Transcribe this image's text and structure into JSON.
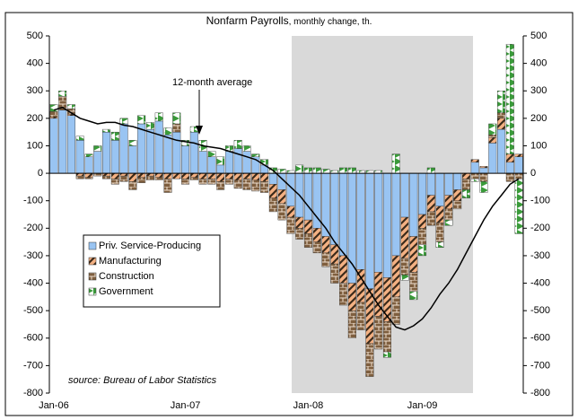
{
  "chart_data": {
    "type": "bar",
    "stacked": true,
    "title": "Nonfarm Payrolls",
    "subtitle": ", monthly change, th.",
    "annotation": "source: Bureau of Labor Statistics",
    "categories": [
      "Jan-06",
      null,
      null,
      null,
      null,
      null,
      null,
      null,
      null,
      null,
      null,
      null,
      null,
      null,
      null,
      "Jan-07",
      null,
      null,
      null,
      null,
      null,
      null,
      null,
      null,
      null,
      null,
      null,
      null,
      null,
      "Jan-08",
      null,
      null,
      null,
      null,
      null,
      null,
      null,
      null,
      null,
      null,
      null,
      null,
      "Jan-09",
      null,
      null,
      null,
      null,
      null,
      null,
      null,
      null,
      null,
      null,
      null
    ],
    "ylim": [
      -800,
      500
    ],
    "yticks": [
      -800,
      -700,
      -600,
      -500,
      -400,
      -300,
      -200,
      -100,
      0,
      100,
      200,
      300,
      400,
      500
    ],
    "y2lim": [
      -800,
      500
    ],
    "y2ticks": [
      -800,
      -700,
      -600,
      -500,
      -400,
      -300,
      -200,
      -100,
      0,
      100,
      200,
      300,
      400,
      500
    ],
    "grid": false,
    "legend": "lower left",
    "series": [
      {
        "name": "Priv. Service-Producing",
        "color": "#99c4f2",
        "values": [
          200,
          230,
          210,
          120,
          60,
          80,
          150,
          120,
          180,
          100,
          180,
          160,
          190,
          140,
          150,
          100,
          150,
          80,
          60,
          30,
          80,
          90,
          80,
          60,
          30,
          -40,
          -60,
          -120,
          -160,
          -170,
          -200,
          -230,
          -260,
          -300,
          -400,
          -350,
          -420,
          -360,
          -380,
          -300,
          -160,
          -230,
          -150,
          -80,
          -120,
          -80,
          -60,
          0,
          40,
          20,
          110,
          160,
          40,
          60
        ]
      },
      {
        "name": "Manufacturing",
        "color": "#f4b183",
        "values": [
          5,
          0,
          5,
          -10,
          -15,
          0,
          -10,
          -20,
          -10,
          -30,
          -15,
          -10,
          -15,
          -20,
          -20,
          -20,
          -15,
          -20,
          -20,
          -30,
          -20,
          -25,
          -20,
          -25,
          -30,
          -50,
          -50,
          -40,
          -40,
          -50,
          -50,
          -60,
          -70,
          -100,
          -100,
          -120,
          -200,
          -160,
          -160,
          -150,
          -150,
          -130,
          -50,
          -60,
          -60,
          -50,
          -40,
          -20,
          10,
          5,
          20,
          40,
          30,
          10
        ]
      },
      {
        "name": "Construction",
        "color": "#7f5f3f",
        "values": [
          20,
          50,
          20,
          -10,
          -5,
          -10,
          -10,
          -20,
          -20,
          -30,
          -20,
          -15,
          -10,
          -50,
          30,
          -20,
          -10,
          -20,
          -20,
          -30,
          -20,
          -30,
          -40,
          -40,
          -40,
          -50,
          -60,
          -60,
          -40,
          -50,
          -40,
          -50,
          -70,
          -80,
          -100,
          -100,
          -120,
          -120,
          -110,
          -100,
          -60,
          -70,
          -60,
          -50,
          -70,
          -40,
          -30,
          -40,
          -20,
          -30,
          10,
          20,
          -30,
          -20
        ]
      },
      {
        "name": "Government",
        "color": "#3a9a3a",
        "values": [
          25,
          20,
          15,
          15,
          10,
          20,
          10,
          30,
          20,
          20,
          30,
          25,
          30,
          25,
          40,
          20,
          20,
          40,
          20,
          30,
          20,
          30,
          20,
          10,
          20,
          20,
          15,
          10,
          30,
          20,
          20,
          15,
          10,
          20,
          20,
          10,
          10,
          10,
          -20,
          70,
          -20,
          -30,
          -40,
          20,
          -20,
          -20,
          0,
          -30,
          -10,
          -40,
          40,
          80,
          400,
          -200
        ]
      },
      {
        "name": "12-month average",
        "color": "#000000",
        "type": "line",
        "values": [
          230,
          240,
          220,
          200,
          190,
          180,
          185,
          185,
          175,
          170,
          160,
          150,
          140,
          130,
          120,
          115,
          110,
          100,
          95,
          90,
          80,
          70,
          60,
          50,
          30,
          10,
          -20,
          -50,
          -80,
          -120,
          -160,
          -200,
          -250,
          -290,
          -330,
          -380,
          -430,
          -480,
          -520,
          -560,
          -570,
          -555,
          -530,
          -490,
          -440,
          -400,
          -350,
          -290,
          -230,
          -170,
          -120,
          -80,
          -40,
          -20
        ]
      }
    ]
  }
}
